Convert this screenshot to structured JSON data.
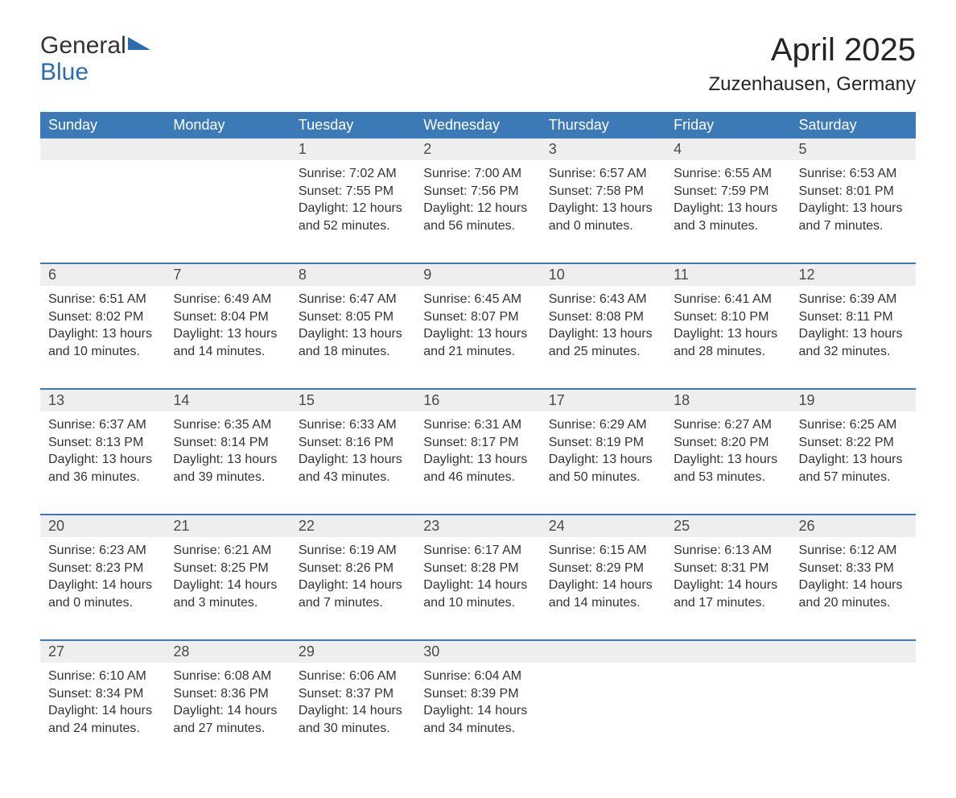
{
  "logo": {
    "line1": "General",
    "line2": "Blue"
  },
  "title": "April 2025",
  "location": "Zuzenhausen, Germany",
  "colors": {
    "header_bg": "#3b79b7",
    "header_text": "#ffffff",
    "daynum_bg": "#eeeeee",
    "row_divider": "#3b79b7",
    "body_text": "#333333",
    "logo_blue": "#2b6cb0"
  },
  "dayHeaders": [
    "Sunday",
    "Monday",
    "Tuesday",
    "Wednesday",
    "Thursday",
    "Friday",
    "Saturday"
  ],
  "labels": {
    "sunrise": "Sunrise:",
    "sunset": "Sunset:",
    "daylight": "Daylight:"
  },
  "weeks": [
    [
      null,
      null,
      {
        "n": "1",
        "sunrise": "7:02 AM",
        "sunset": "7:55 PM",
        "daylight": "12 hours and 52 minutes."
      },
      {
        "n": "2",
        "sunrise": "7:00 AM",
        "sunset": "7:56 PM",
        "daylight": "12 hours and 56 minutes."
      },
      {
        "n": "3",
        "sunrise": "6:57 AM",
        "sunset": "7:58 PM",
        "daylight": "13 hours and 0 minutes."
      },
      {
        "n": "4",
        "sunrise": "6:55 AM",
        "sunset": "7:59 PM",
        "daylight": "13 hours and 3 minutes."
      },
      {
        "n": "5",
        "sunrise": "6:53 AM",
        "sunset": "8:01 PM",
        "daylight": "13 hours and 7 minutes."
      }
    ],
    [
      {
        "n": "6",
        "sunrise": "6:51 AM",
        "sunset": "8:02 PM",
        "daylight": "13 hours and 10 minutes."
      },
      {
        "n": "7",
        "sunrise": "6:49 AM",
        "sunset": "8:04 PM",
        "daylight": "13 hours and 14 minutes."
      },
      {
        "n": "8",
        "sunrise": "6:47 AM",
        "sunset": "8:05 PM",
        "daylight": "13 hours and 18 minutes."
      },
      {
        "n": "9",
        "sunrise": "6:45 AM",
        "sunset": "8:07 PM",
        "daylight": "13 hours and 21 minutes."
      },
      {
        "n": "10",
        "sunrise": "6:43 AM",
        "sunset": "8:08 PM",
        "daylight": "13 hours and 25 minutes."
      },
      {
        "n": "11",
        "sunrise": "6:41 AM",
        "sunset": "8:10 PM",
        "daylight": "13 hours and 28 minutes."
      },
      {
        "n": "12",
        "sunrise": "6:39 AM",
        "sunset": "8:11 PM",
        "daylight": "13 hours and 32 minutes."
      }
    ],
    [
      {
        "n": "13",
        "sunrise": "6:37 AM",
        "sunset": "8:13 PM",
        "daylight": "13 hours and 36 minutes."
      },
      {
        "n": "14",
        "sunrise": "6:35 AM",
        "sunset": "8:14 PM",
        "daylight": "13 hours and 39 minutes."
      },
      {
        "n": "15",
        "sunrise": "6:33 AM",
        "sunset": "8:16 PM",
        "daylight": "13 hours and 43 minutes."
      },
      {
        "n": "16",
        "sunrise": "6:31 AM",
        "sunset": "8:17 PM",
        "daylight": "13 hours and 46 minutes."
      },
      {
        "n": "17",
        "sunrise": "6:29 AM",
        "sunset": "8:19 PM",
        "daylight": "13 hours and 50 minutes."
      },
      {
        "n": "18",
        "sunrise": "6:27 AM",
        "sunset": "8:20 PM",
        "daylight": "13 hours and 53 minutes."
      },
      {
        "n": "19",
        "sunrise": "6:25 AM",
        "sunset": "8:22 PM",
        "daylight": "13 hours and 57 minutes."
      }
    ],
    [
      {
        "n": "20",
        "sunrise": "6:23 AM",
        "sunset": "8:23 PM",
        "daylight": "14 hours and 0 minutes."
      },
      {
        "n": "21",
        "sunrise": "6:21 AM",
        "sunset": "8:25 PM",
        "daylight": "14 hours and 3 minutes."
      },
      {
        "n": "22",
        "sunrise": "6:19 AM",
        "sunset": "8:26 PM",
        "daylight": "14 hours and 7 minutes."
      },
      {
        "n": "23",
        "sunrise": "6:17 AM",
        "sunset": "8:28 PM",
        "daylight": "14 hours and 10 minutes."
      },
      {
        "n": "24",
        "sunrise": "6:15 AM",
        "sunset": "8:29 PM",
        "daylight": "14 hours and 14 minutes."
      },
      {
        "n": "25",
        "sunrise": "6:13 AM",
        "sunset": "8:31 PM",
        "daylight": "14 hours and 17 minutes."
      },
      {
        "n": "26",
        "sunrise": "6:12 AM",
        "sunset": "8:33 PM",
        "daylight": "14 hours and 20 minutes."
      }
    ],
    [
      {
        "n": "27",
        "sunrise": "6:10 AM",
        "sunset": "8:34 PM",
        "daylight": "14 hours and 24 minutes."
      },
      {
        "n": "28",
        "sunrise": "6:08 AM",
        "sunset": "8:36 PM",
        "daylight": "14 hours and 27 minutes."
      },
      {
        "n": "29",
        "sunrise": "6:06 AM",
        "sunset": "8:37 PM",
        "daylight": "14 hours and 30 minutes."
      },
      {
        "n": "30",
        "sunrise": "6:04 AM",
        "sunset": "8:39 PM",
        "daylight": "14 hours and 34 minutes."
      },
      null,
      null,
      null
    ]
  ]
}
